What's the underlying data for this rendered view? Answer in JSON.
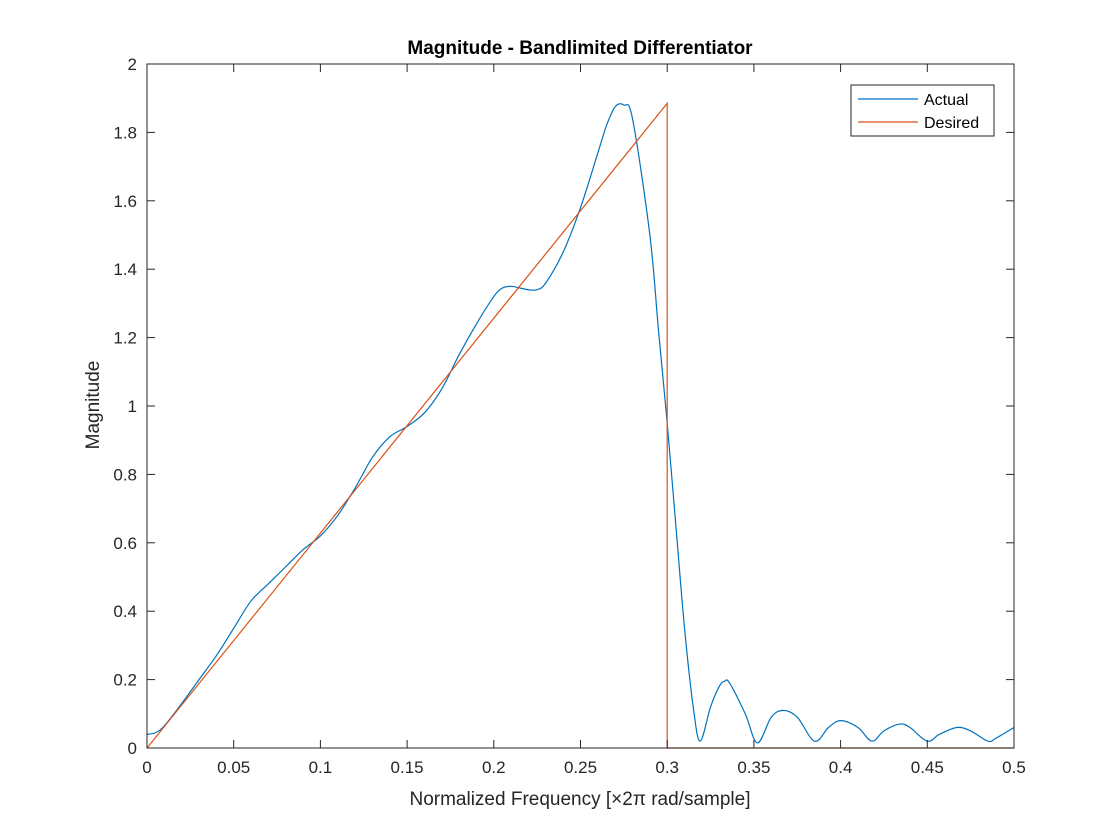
{
  "chart_data": {
    "type": "line",
    "title": "Magnitude - Bandlimited Differentiator",
    "xlabel": "Normalized Frequency [×2π rad/sample]",
    "ylabel": "Magnitude",
    "xlim": [
      0,
      0.5
    ],
    "ylim": [
      0,
      2
    ],
    "xticks": [
      "0",
      "0.05",
      "0.1",
      "0.15",
      "0.2",
      "0.25",
      "0.3",
      "0.35",
      "0.4",
      "0.45",
      "0.5"
    ],
    "yticks": [
      "0",
      "0.2",
      "0.4",
      "0.6",
      "0.8",
      "1",
      "1.2",
      "1.4",
      "1.6",
      "1.8",
      "2"
    ],
    "grid": false,
    "legend": "top-right",
    "series": [
      {
        "name": "Actual",
        "color": "#0072BD",
        "x": [
          0,
          0.005,
          0.01,
          0.02,
          0.03,
          0.04,
          0.05,
          0.06,
          0.07,
          0.08,
          0.09,
          0.1,
          0.11,
          0.12,
          0.13,
          0.14,
          0.15,
          0.16,
          0.17,
          0.18,
          0.19,
          0.2,
          0.205,
          0.21,
          0.215,
          0.22,
          0.225,
          0.23,
          0.24,
          0.25,
          0.26,
          0.265,
          0.27,
          0.275,
          0.28,
          0.29,
          0.295,
          0.3,
          0.305,
          0.31,
          0.315,
          0.319,
          0.325,
          0.33,
          0.333,
          0.336,
          0.345,
          0.352,
          0.36,
          0.367,
          0.375,
          0.385,
          0.393,
          0.4,
          0.41,
          0.418,
          0.425,
          0.434,
          0.44,
          0.45,
          0.457,
          0.467,
          0.475,
          0.485,
          0.49,
          0.5
        ],
        "y": [
          0.04,
          0.045,
          0.065,
          0.13,
          0.2,
          0.27,
          0.35,
          0.43,
          0.48,
          0.53,
          0.58,
          0.62,
          0.68,
          0.76,
          0.85,
          0.91,
          0.94,
          0.98,
          1.05,
          1.15,
          1.24,
          1.32,
          1.345,
          1.35,
          1.345,
          1.34,
          1.34,
          1.36,
          1.45,
          1.58,
          1.74,
          1.82,
          1.875,
          1.88,
          1.84,
          1.5,
          1.22,
          0.95,
          0.65,
          0.35,
          0.12,
          0.02,
          0.12,
          0.18,
          0.195,
          0.19,
          0.1,
          0.015,
          0.09,
          0.11,
          0.09,
          0.02,
          0.06,
          0.08,
          0.06,
          0.02,
          0.05,
          0.07,
          0.06,
          0.02,
          0.04,
          0.06,
          0.05,
          0.02,
          0.03,
          0.06
        ]
      },
      {
        "name": "Desired",
        "color": "#D95319",
        "x": [
          0,
          0.3,
          0.3,
          0.5
        ],
        "y": [
          0,
          1.885,
          0,
          0
        ]
      }
    ]
  }
}
